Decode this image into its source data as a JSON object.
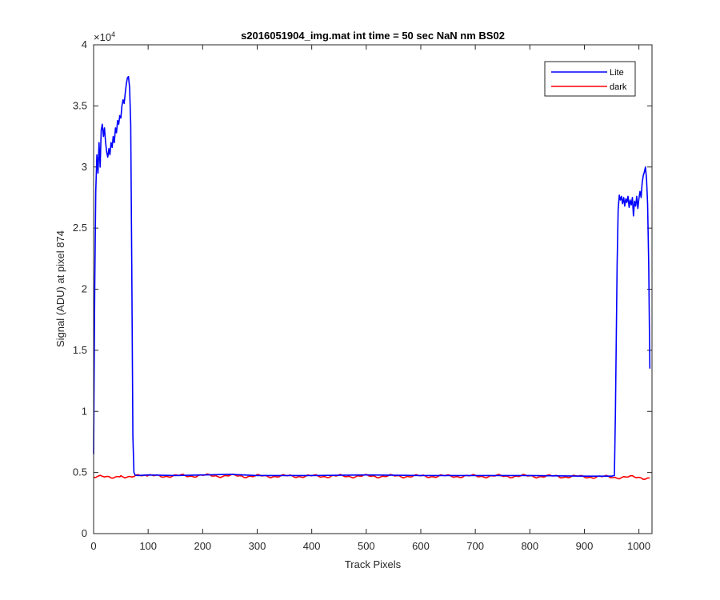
{
  "chart_data": {
    "type": "line",
    "title": "s2016051904_img.mat int time = 50 sec  NaN nm BS02",
    "xlabel": "Track Pixels",
    "ylabel": "Signal (ADU) at pixel 874",
    "y_exponent_label": "×10",
    "y_exponent_power": "4",
    "xlim": [
      0,
      1024
    ],
    "ylim": [
      0,
      40000
    ],
    "xticks": [
      0,
      100,
      200,
      300,
      400,
      500,
      600,
      700,
      800,
      900,
      1000
    ],
    "xtick_labels": [
      "0",
      "100",
      "200",
      "300",
      "400",
      "500",
      "600",
      "700",
      "800",
      "900",
      "1000"
    ],
    "yticks": [
      0,
      5000,
      10000,
      15000,
      20000,
      25000,
      30000,
      35000,
      40000
    ],
    "ytick_labels": [
      "0",
      "0.5",
      "1",
      "1.5",
      "2",
      "2.5",
      "3",
      "3.5",
      "4"
    ],
    "grid": false,
    "legend_position": "top-right",
    "series": [
      {
        "name": "Lite",
        "color": "#0000ff",
        "points": [
          [
            0,
            6500
          ],
          [
            2,
            20000
          ],
          [
            4,
            28000
          ],
          [
            6,
            31000
          ],
          [
            8,
            29500
          ],
          [
            10,
            32000
          ],
          [
            12,
            30000
          ],
          [
            14,
            33000
          ],
          [
            16,
            33500
          ],
          [
            18,
            32500
          ],
          [
            20,
            33200
          ],
          [
            22,
            32000
          ],
          [
            24,
            31200
          ],
          [
            26,
            30800
          ],
          [
            28,
            31500
          ],
          [
            30,
            31000
          ],
          [
            32,
            32000
          ],
          [
            34,
            31600
          ],
          [
            36,
            32500
          ],
          [
            38,
            32000
          ],
          [
            40,
            33200
          ],
          [
            42,
            32800
          ],
          [
            44,
            33800
          ],
          [
            46,
            33500
          ],
          [
            48,
            34200
          ],
          [
            50,
            34000
          ],
          [
            52,
            35000
          ],
          [
            54,
            35500
          ],
          [
            56,
            35200
          ],
          [
            58,
            36000
          ],
          [
            60,
            36800
          ],
          [
            62,
            37300
          ],
          [
            64,
            37400
          ],
          [
            66,
            36500
          ],
          [
            68,
            33500
          ],
          [
            70,
            22000
          ],
          [
            72,
            8000
          ],
          [
            74,
            5000
          ],
          [
            76,
            4800
          ],
          [
            80,
            4750
          ],
          [
            100,
            4800
          ],
          [
            150,
            4750
          ],
          [
            200,
            4800
          ],
          [
            250,
            4850
          ],
          [
            300,
            4750
          ],
          [
            400,
            4750
          ],
          [
            500,
            4800
          ],
          [
            600,
            4750
          ],
          [
            700,
            4750
          ],
          [
            800,
            4750
          ],
          [
            900,
            4700
          ],
          [
            950,
            4700
          ],
          [
            955,
            4750
          ],
          [
            957,
            10000
          ],
          [
            960,
            22000
          ],
          [
            962,
            26500
          ],
          [
            964,
            27700
          ],
          [
            966,
            27300
          ],
          [
            968,
            27600
          ],
          [
            970,
            27000
          ],
          [
            972,
            27500
          ],
          [
            974,
            26800
          ],
          [
            976,
            27400
          ],
          [
            978,
            27100
          ],
          [
            980,
            27600
          ],
          [
            982,
            26700
          ],
          [
            984,
            27300
          ],
          [
            986,
            26900
          ],
          [
            988,
            27500
          ],
          [
            990,
            26000
          ],
          [
            992,
            27200
          ],
          [
            994,
            26800
          ],
          [
            996,
            27600
          ],
          [
            998,
            26600
          ],
          [
            1000,
            27400
          ],
          [
            1002,
            28000
          ],
          [
            1004,
            27500
          ],
          [
            1006,
            28700
          ],
          [
            1008,
            29300
          ],
          [
            1010,
            29600
          ],
          [
            1012,
            30000
          ],
          [
            1014,
            29000
          ],
          [
            1016,
            27000
          ],
          [
            1018,
            22000
          ],
          [
            1020,
            13500
          ]
        ]
      },
      {
        "name": "dark",
        "color": "#ff0000",
        "points": [
          [
            0,
            4600
          ],
          [
            50,
            4700
          ],
          [
            100,
            4700
          ],
          [
            200,
            4750
          ],
          [
            300,
            4700
          ],
          [
            400,
            4700
          ],
          [
            500,
            4700
          ],
          [
            600,
            4700
          ],
          [
            700,
            4700
          ],
          [
            800,
            4700
          ],
          [
            900,
            4650
          ],
          [
            1000,
            4600
          ],
          [
            1020,
            4550
          ]
        ]
      }
    ]
  }
}
